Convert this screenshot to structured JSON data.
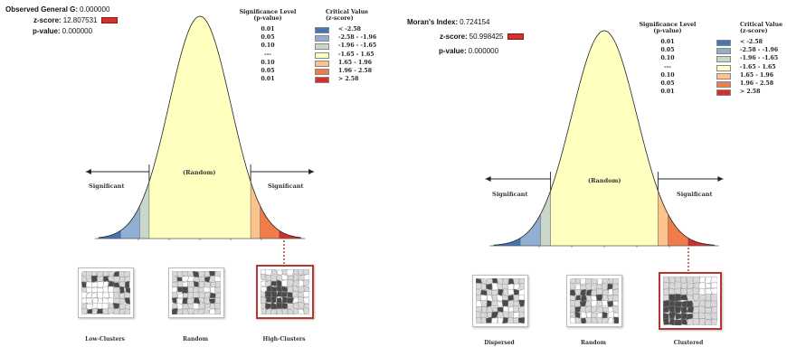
{
  "left": {
    "stat_lines": [
      {
        "label": "Observed General G:",
        "value": "0.000000"
      },
      {
        "label": "z-score:",
        "value": "12.807531"
      },
      {
        "label": "p-value:",
        "value": "0.000000"
      }
    ],
    "legend": {
      "header_p": [
        "Significance Level",
        "(p-value)"
      ],
      "header_c": [
        "Critical Value",
        "(z-score)"
      ],
      "rows": [
        {
          "p": "0.01",
          "c": "< -2.58",
          "color": "#4575b4"
        },
        {
          "p": "0.05",
          "c": "-2.58 - -1.96",
          "color": "#91aed3"
        },
        {
          "p": "0.10",
          "c": "-1.96 - -1.65",
          "color": "#c8d7c9"
        },
        {
          "p": "---",
          "c": "-1.65 - 1.65",
          "color": "#ffffbf"
        },
        {
          "p": "0.10",
          "c": "1.65 - 1.96",
          "color": "#fdc38d"
        },
        {
          "p": "0.05",
          "c": "1.96 - 2.58",
          "color": "#f07c4a"
        },
        {
          "p": "0.01",
          "c": "> 2.58",
          "color": "#d7302b"
        }
      ]
    },
    "significant_left": "Significant",
    "significant_right": "Significant",
    "random": "(Random)",
    "maps": [
      "Low-Clusters",
      "Random",
      "High-Clusters"
    ]
  },
  "right": {
    "stat_lines": [
      {
        "label": "Moran's Index:",
        "value": "0.724154"
      },
      {
        "label": "z-score:",
        "value": "50.998425"
      },
      {
        "label": "p-value:",
        "value": "0.000000"
      }
    ],
    "legend": {
      "header_p": [
        "Significance Level",
        "(p-value)"
      ],
      "header_c": [
        "Critical Value",
        "(z-score)"
      ],
      "rows": [
        {
          "p": "0.01",
          "c": "< -2.58",
          "color": "#4575b4"
        },
        {
          "p": "0.05",
          "c": "-2.58 - -1.96",
          "color": "#91aed3"
        },
        {
          "p": "0.10",
          "c": "-1.96 - -1.65",
          "color": "#c8d7c9"
        },
        {
          "p": "---",
          "c": "-1.65 - 1.65",
          "color": "#ffffbf"
        },
        {
          "p": "0.10",
          "c": "1.65 - 1.96",
          "color": "#fdc38d"
        },
        {
          "p": "0.05",
          "c": "1.96 - 2.58",
          "color": "#f07c4a"
        },
        {
          "p": "0.01",
          "c": "> 2.58",
          "color": "#d7302b"
        }
      ]
    },
    "significant_left": "Significant",
    "significant_right": "Significant",
    "random": "(Random)",
    "maps": [
      "Dispersed",
      "Random",
      "Clustered"
    ]
  },
  "colors": {
    "highlight": "#b5362e",
    "map_dark": "#4a4a4a",
    "map_light": "#d9d9d9",
    "map_white": "#ffffff"
  }
}
